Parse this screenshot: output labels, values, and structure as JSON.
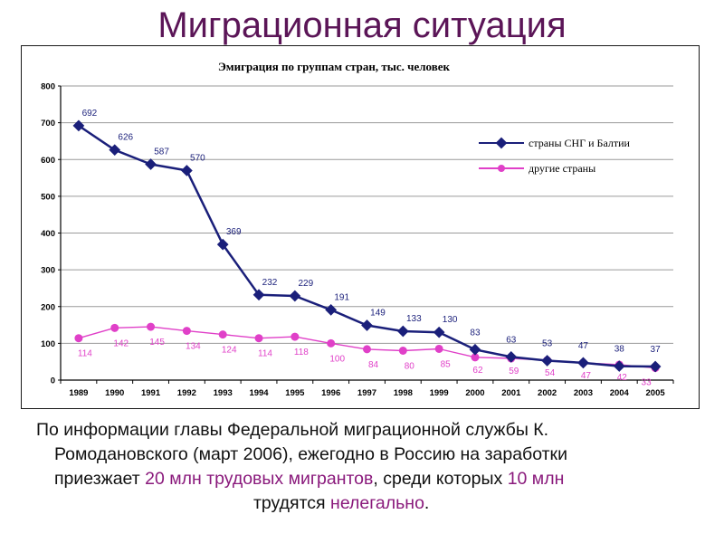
{
  "slide": {
    "title": "Миграционная ситуация"
  },
  "caption": {
    "line1": "По информации главы Федеральной миграционной службы К.",
    "line2": "Ромодановского (март 2006), ежегодно в Россию на заработки",
    "line3_a": "приезжает ",
    "line3_hl1": "20 млн трудовых мигрантов",
    "line3_b": ", среди которых ",
    "line3_hl2": "10 млн",
    "line4_a": "трудятся ",
    "line4_hl": "нелегально",
    "line4_b": "."
  },
  "colors": {
    "title": "#5b1557",
    "series_cis": "#1a1f7a",
    "series_other": "#e040c8",
    "highlight": "#8a1a7c"
  },
  "chart_data": {
    "type": "line",
    "title": "Эмиграция по группам стран, тыс. человек",
    "categories": [
      "1989",
      "1990",
      "1991",
      "1992",
      "1993",
      "1994",
      "1995",
      "1996",
      "1997",
      "1998",
      "1999",
      "2000",
      "2001",
      "2002",
      "2003",
      "2004",
      "2005"
    ],
    "ylim": [
      0,
      800
    ],
    "yticks": [
      0,
      100,
      200,
      300,
      400,
      500,
      600,
      700,
      800
    ],
    "grid": true,
    "legend_position": "top-right",
    "series": [
      {
        "name": "страны СНГ и Балтии",
        "values": [
          692,
          626,
          587,
          570,
          369,
          232,
          229,
          191,
          149,
          133,
          130,
          83,
          63,
          53,
          47,
          38,
          37
        ]
      },
      {
        "name": "другие страны",
        "values": [
          114,
          142,
          145,
          134,
          124,
          114,
          118,
          100,
          84,
          80,
          85,
          62,
          59,
          54,
          47,
          42,
          33
        ]
      }
    ]
  }
}
